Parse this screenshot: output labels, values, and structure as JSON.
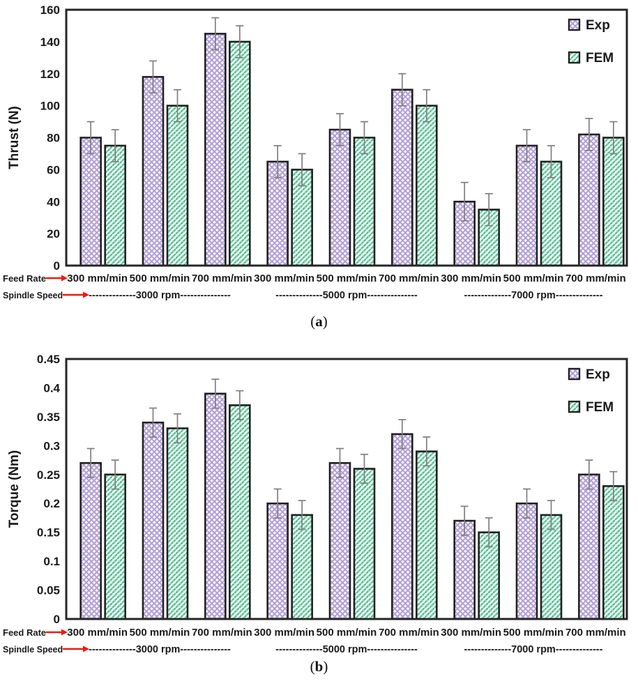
{
  "colors": {
    "exp_pattern": "#b3a0d6",
    "exp_pattern_light": "#e3d9f2",
    "fem_pattern": "#53c092",
    "fem_pattern_light": "#bde8d5",
    "bar_border": "#212121",
    "frame": "#262626",
    "error_bar": "#7f7f7f",
    "arrow": "#f2180c",
    "text": "#1a1a1a"
  },
  "chart_data": [
    {
      "id": "a",
      "type": "bar",
      "title": "",
      "caption": {
        "open": "(",
        "letter": "a",
        "close": ")"
      },
      "xlabel": "",
      "ylabel": "Thrust (N)",
      "ylim": [
        0,
        160
      ],
      "yticks": [
        "0",
        "20",
        "40",
        "60",
        "80",
        "100",
        "120",
        "140",
        "160"
      ],
      "grid": false,
      "legend_position": "top-right",
      "error_bars": true,
      "categories": [
        "300 mm/min",
        "500 mm/min",
        "700 mm/min",
        "300 mm/min",
        "500 mm/min",
        "700 mm/min",
        "300 mm/min",
        "500 mm/min",
        "700 mm/min"
      ],
      "row_labels": {
        "feed_rate": "Feed Rate",
        "spindle_speed": "Spindle Speed"
      },
      "spindle_groups": [
        "--------------3000 rpm---------------",
        "--------------5000 rpm---------------",
        "--------------7000 rpm--------------"
      ],
      "series": [
        {
          "name": "Exp",
          "values": [
            80,
            118,
            145,
            65,
            85,
            110,
            40,
            75,
            82
          ],
          "err_up": [
            10,
            10,
            10,
            10,
            10,
            10,
            12,
            10,
            10
          ],
          "err_down": [
            10,
            10,
            10,
            10,
            10,
            10,
            12,
            10,
            10
          ]
        },
        {
          "name": "FEM",
          "values": [
            75,
            100,
            140,
            60,
            80,
            100,
            35,
            65,
            80
          ],
          "err_up": [
            10,
            10,
            10,
            10,
            10,
            10,
            10,
            10,
            10
          ],
          "err_down": [
            10,
            10,
            10,
            10,
            10,
            10,
            10,
            10,
            10
          ]
        }
      ]
    },
    {
      "id": "b",
      "type": "bar",
      "title": "",
      "caption": {
        "open": "(",
        "letter": "b",
        "close": ")"
      },
      "xlabel": "",
      "ylabel": "Torque (Nm)",
      "ylim": [
        0,
        0.45
      ],
      "yticks": [
        "0",
        "0.05",
        "0.1",
        "0.15",
        "0.2",
        "0.25",
        "0.3",
        "0.35",
        "0.4",
        "0.45"
      ],
      "grid": false,
      "legend_position": "top-right",
      "error_bars": true,
      "categories": [
        "300 mm/min",
        "500 mm/min",
        "700 mm/min",
        "300 mm/min",
        "500 mm/min",
        "700 mm/min",
        "300 mm/min",
        "500 mm/min",
        "700 mm/min"
      ],
      "row_labels": {
        "feed_rate": "Feed Rate",
        "spindle_speed": "Spindle Speed"
      },
      "spindle_groups": [
        "--------------3000 rpm---------------",
        "--------------5000 rpm---------------",
        "--------------7000 rpm--------------"
      ],
      "series": [
        {
          "name": "Exp",
          "values": [
            0.27,
            0.34,
            0.39,
            0.2,
            0.27,
            0.32,
            0.17,
            0.2,
            0.25
          ],
          "err_up": [
            0.025,
            0.025,
            0.025,
            0.025,
            0.025,
            0.025,
            0.025,
            0.025,
            0.025
          ],
          "err_down": [
            0.025,
            0.025,
            0.025,
            0.025,
            0.025,
            0.025,
            0.025,
            0.025,
            0.025
          ]
        },
        {
          "name": "FEM",
          "values": [
            0.25,
            0.33,
            0.37,
            0.18,
            0.26,
            0.29,
            0.15,
            0.18,
            0.23
          ],
          "err_up": [
            0.025,
            0.025,
            0.025,
            0.025,
            0.025,
            0.025,
            0.025,
            0.025,
            0.025
          ],
          "err_down": [
            0.025,
            0.025,
            0.025,
            0.025,
            0.025,
            0.025,
            0.025,
            0.025,
            0.025
          ]
        }
      ]
    }
  ]
}
